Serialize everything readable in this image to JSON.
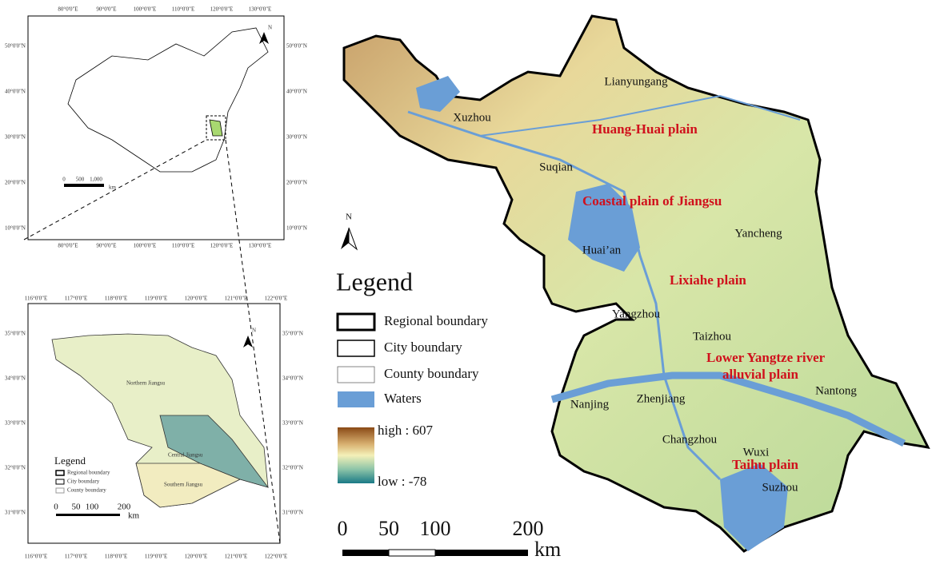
{
  "china_inset": {
    "lon_labels": [
      "80°0'0\"E",
      "90°0'0\"E",
      "100°0'0\"E",
      "110°0'0\"E",
      "120°0'0\"E",
      "130°0'0\"E"
    ],
    "lat_labels": [
      "50°0'0\"N",
      "40°0'0\"N",
      "30°0'0\"N",
      "20°0'0\"N",
      "10°0'0\"N"
    ],
    "scale": [
      "0",
      "500",
      "1,000"
    ],
    "scale_unit": "km",
    "north": "N"
  },
  "jiangsu_inset": {
    "lon_labels": [
      "116°0'0\"E",
      "117°0'0\"E",
      "118°0'0\"E",
      "119°0'0\"E",
      "120°0'0\"E",
      "121°0'0\"E",
      "122°0'0\"E"
    ],
    "lat_labels": [
      "35°0'0\"N",
      "34°0'0\"N",
      "33°0'0\"N",
      "32°0'0\"N",
      "31°0'0\"N"
    ],
    "regions": [
      "Northern Jiangsu",
      "Central Jiangsu",
      "Southern Jiangsu"
    ],
    "legend": {
      "title": "Legend",
      "items": [
        "Regional boundary",
        "City boundary",
        "County boundary"
      ]
    },
    "scale": [
      "0",
      "50",
      "100",
      "200"
    ],
    "scale_unit": "km",
    "north": "N"
  },
  "main_map": {
    "cities": [
      "Lianyungang",
      "Xuzhou",
      "Suqian",
      "Yancheng",
      "Huai’an",
      "Yangzhou",
      "Taizhou",
      "Nanjing",
      "Zhenjiang",
      "Changzhou",
      "Wuxi",
      "Suzhou",
      "Nantong"
    ],
    "regions": [
      "Huang-Huai  plain",
      "Coastal  plain of Jiangsu",
      "Lixiahe  plain",
      "Lower Yangtze river",
      "alluvial plain",
      "Taihu plain"
    ],
    "north": "N"
  },
  "legend": {
    "title": "Legend",
    "items": [
      "Regional boundary",
      "City boundary",
      "County boundary",
      "Waters"
    ],
    "elevation_high": "high : 607",
    "elevation_low": "low : -78"
  },
  "scale_bar": {
    "ticks": [
      "0",
      "50",
      "100",
      "200"
    ],
    "unit": "km"
  }
}
